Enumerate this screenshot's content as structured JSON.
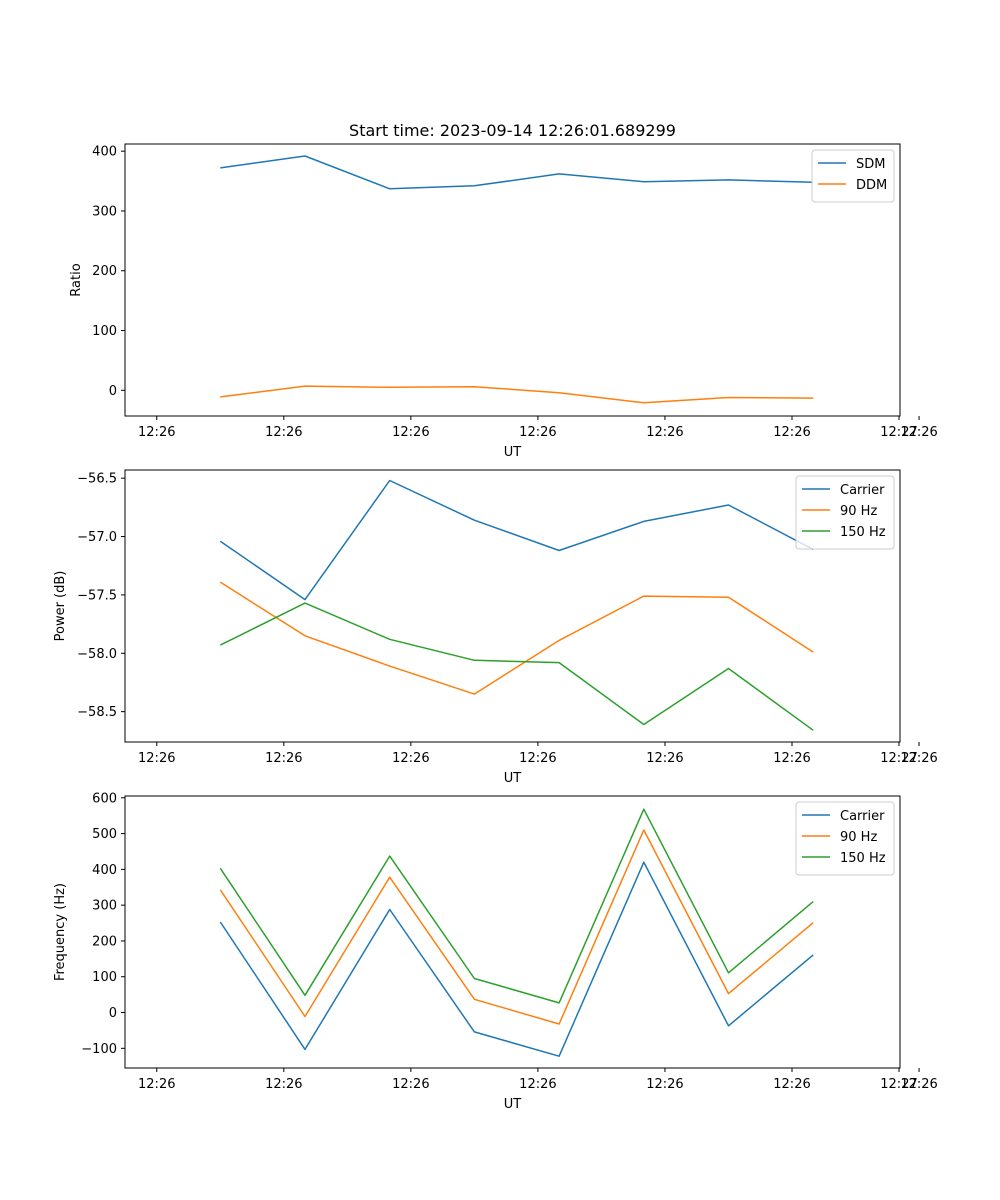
{
  "figure": {
    "title": "Start time: 2023-09-14 12:26:01.689299"
  },
  "colors": {
    "blue": "#1f77b4",
    "orange": "#ff7f0e",
    "green": "#2ca02c"
  },
  "chart_data": [
    {
      "type": "line",
      "title": "Start time: 2023-09-14 12:26:01.689299",
      "xlabel": "UT",
      "ylabel": "Ratio",
      "xlim": [
        -0.15,
        1.07
      ],
      "ylim": [
        -43,
        412
      ],
      "x": [
        0,
        0.1333,
        0.2667,
        0.4,
        0.5333,
        0.6667,
        0.8,
        0.9333
      ],
      "xticks": [
        -0.1,
        0.1,
        0.3,
        0.5,
        0.7,
        0.9,
        1.1
      ],
      "xtick_labels": [
        "12:26",
        "12:26",
        "12:26",
        "12:26",
        "12:26",
        "12:26",
        "12:26",
        "12:27"
      ],
      "yticks": [
        0,
        100,
        200,
        300,
        400
      ],
      "ytick_labels": [
        "0",
        "100",
        "200",
        "300",
        "400"
      ],
      "legend_position": "top-right",
      "series": [
        {
          "name": "SDM",
          "color": "#1f77b4",
          "values": [
            372,
            392,
            337,
            342,
            362,
            349,
            352,
            348
          ]
        },
        {
          "name": "DDM",
          "color": "#ff7f0e",
          "values": [
            -11,
            7,
            5,
            6,
            -4,
            -21,
            -12,
            -13
          ]
        }
      ]
    },
    {
      "type": "line",
      "title": "",
      "xlabel": "UT",
      "ylabel": "Power (dB)",
      "xlim": [
        -0.15,
        1.07
      ],
      "ylim": [
        -58.76,
        -56.43
      ],
      "x": [
        0,
        0.1333,
        0.2667,
        0.4,
        0.5333,
        0.6667,
        0.8,
        0.9333
      ],
      "xticks": [
        -0.1,
        0.1,
        0.3,
        0.5,
        0.7,
        0.9,
        1.1
      ],
      "xtick_labels": [
        "12:26",
        "12:26",
        "12:26",
        "12:26",
        "12:26",
        "12:26",
        "12:26",
        "12:27"
      ],
      "yticks": [
        -56.5,
        -57.0,
        -57.5,
        -58.0,
        -58.5
      ],
      "ytick_labels": [
        "−56.5",
        "−57.0",
        "−57.5",
        "−58.0",
        "−58.5"
      ],
      "legend_position": "top-right",
      "series": [
        {
          "name": "Carrier",
          "color": "#1f77b4",
          "values": [
            -57.04,
            -57.54,
            -56.52,
            -56.86,
            -57.12,
            -56.87,
            -56.73,
            -57.11
          ]
        },
        {
          "name": "90 Hz",
          "color": "#ff7f0e",
          "values": [
            -57.39,
            -57.85,
            -58.11,
            -58.35,
            -57.89,
            -57.51,
            -57.52,
            -57.99
          ]
        },
        {
          "name": "150 Hz",
          "color": "#2ca02c",
          "values": [
            -57.93,
            -57.57,
            -57.88,
            -58.06,
            -58.08,
            -58.61,
            -58.13,
            -58.66
          ]
        }
      ]
    },
    {
      "type": "line",
      "title": "",
      "xlabel": "UT",
      "ylabel": "Frequency (Hz)",
      "xlim": [
        -0.15,
        1.07
      ],
      "ylim": [
        -155,
        605
      ],
      "x": [
        0,
        0.1333,
        0.2667,
        0.4,
        0.5333,
        0.6667,
        0.8,
        0.9333
      ],
      "xticks": [
        -0.1,
        0.1,
        0.3,
        0.5,
        0.7,
        0.9,
        1.1
      ],
      "xtick_labels": [
        "12:26",
        "12:26",
        "12:26",
        "12:26",
        "12:26",
        "12:26",
        "12:26",
        "12:27"
      ],
      "yticks": [
        -100,
        0,
        100,
        200,
        300,
        400,
        500,
        600
      ],
      "ytick_labels": [
        "−100",
        "0",
        "100",
        "200",
        "300",
        "400",
        "500",
        "600"
      ],
      "legend_position": "top-right",
      "series": [
        {
          "name": "Carrier",
          "color": "#1f77b4",
          "values": [
            253,
            -103,
            288,
            -54,
            -122,
            420,
            -37,
            161
          ]
        },
        {
          "name": "90 Hz",
          "color": "#ff7f0e",
          "values": [
            343,
            -11,
            378,
            37,
            -32,
            510,
            53,
            251
          ]
        },
        {
          "name": "150 Hz",
          "color": "#2ca02c",
          "values": [
            403,
            48,
            437,
            95,
            27,
            568,
            111,
            310
          ]
        }
      ]
    }
  ]
}
